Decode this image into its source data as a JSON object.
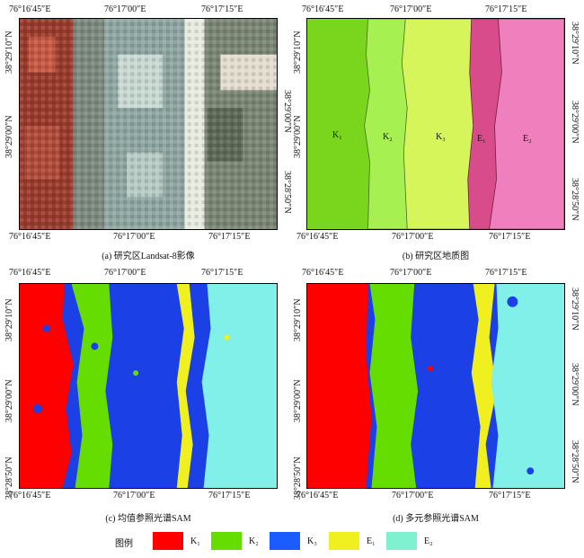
{
  "ticks": {
    "lon": [
      "76°16′45″E",
      "76°17′00″E",
      "76°17′15″E"
    ],
    "lat": [
      "38°29′10″N",
      "38°29′00″N",
      "38°28′50″N"
    ]
  },
  "panels": [
    {
      "id": "a",
      "caption": "(a) 研究区Landsat-8影像"
    },
    {
      "id": "b",
      "caption": "(b) 研究区地质图"
    },
    {
      "id": "c",
      "caption": "(c) 均值参照光谱SAM"
    },
    {
      "id": "d",
      "caption": "(d) 多元参照光谱SAM"
    }
  ],
  "geo_labels": [
    "K₁",
    "K₂",
    "K₃",
    "E₁",
    "E₂"
  ],
  "legend": {
    "title": "图例",
    "items": [
      {
        "label": "K₁",
        "color": "#ff0000"
      },
      {
        "label": "K₂",
        "color": "#66dd00"
      },
      {
        "label": "K₃",
        "color": "#1a5cff"
      },
      {
        "label": "E₁",
        "color": "#f0f020"
      },
      {
        "label": "E₂",
        "color": "#7ff0d0"
      }
    ]
  },
  "colors": {
    "K1": "#ff0000",
    "K2": "#66dd00",
    "K3": "#1a40e6",
    "E1": "#f0f020",
    "E2": "#80f0e8",
    "geoK1": "#7ad61c",
    "geoK2": "#a6f052",
    "geoK3": "#d6f55a",
    "geoE1": "#d94c8c",
    "geoE2": "#ef7fbd"
  }
}
